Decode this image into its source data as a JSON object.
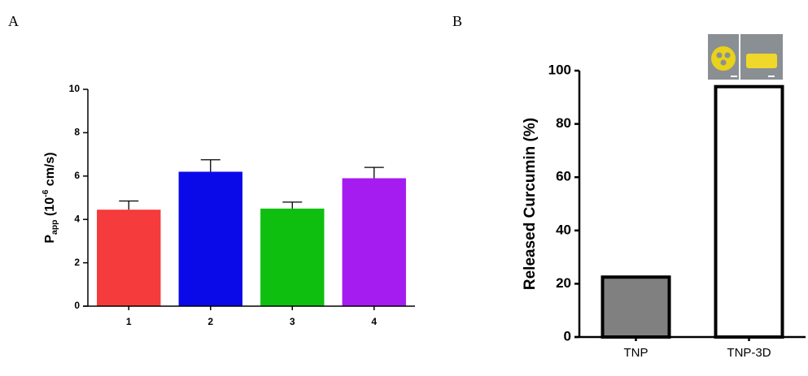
{
  "chart_data": [
    {
      "type": "bar",
      "panel_label": "A",
      "y_label": [
        "P",
        "app",
        " (10",
        "-6",
        " cm/s)"
      ],
      "categories": [
        "1",
        "2",
        "3",
        "4"
      ],
      "values": [
        4.45,
        6.2,
        4.5,
        5.9
      ],
      "errors": [
        0.4,
        0.55,
        0.3,
        0.5
      ],
      "colors": [
        "#f53b3b",
        "#0a0ae8",
        "#0fbf0f",
        "#a51cf0"
      ],
      "ylim": [
        0,
        10
      ],
      "yticks": [
        0,
        2,
        4,
        6,
        8,
        10
      ]
    },
    {
      "type": "bar",
      "panel_label": "B",
      "y_label": "Released Curcumin (%)",
      "categories": [
        "TNP",
        "TNP-3D"
      ],
      "values": [
        22.5,
        94
      ],
      "colors": [
        "#808080",
        "#ffffff"
      ],
      "edgecolor": "#000000",
      "ylim": [
        0,
        100
      ],
      "yticks": [
        0,
        20,
        40,
        60,
        80,
        100
      ]
    }
  ]
}
